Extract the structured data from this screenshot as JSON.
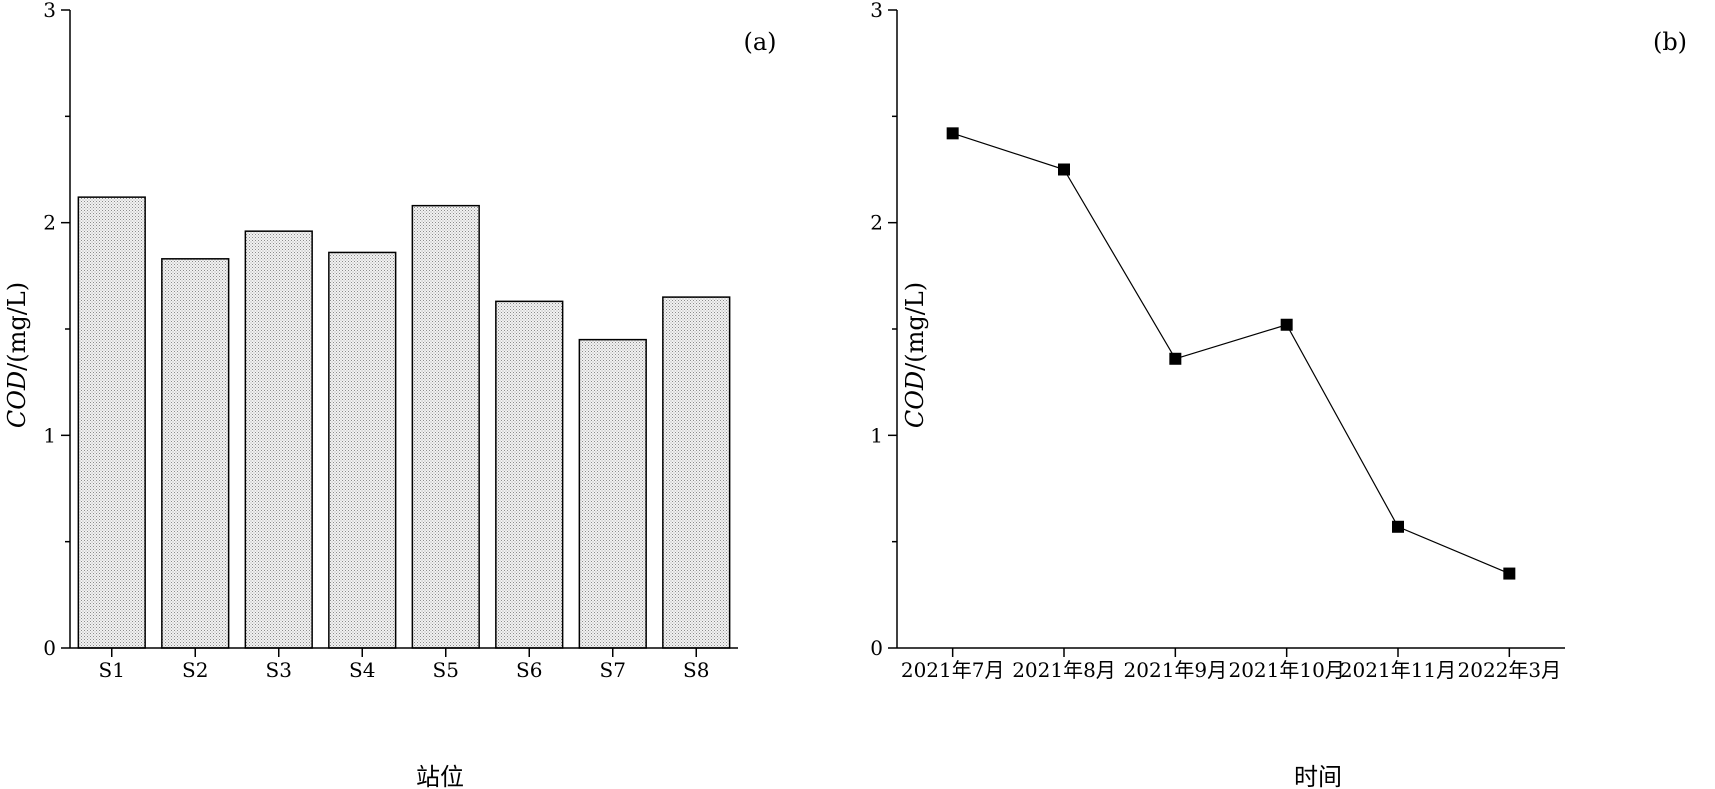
{
  "chart_data": [
    {
      "type": "bar",
      "panel_label": "(a)",
      "categories": [
        "S1",
        "S2",
        "S3",
        "S4",
        "S5",
        "S6",
        "S7",
        "S8"
      ],
      "values": [
        2.12,
        1.83,
        1.96,
        1.86,
        2.08,
        1.63,
        1.45,
        1.65
      ],
      "xlabel": "站位",
      "ylabel_italic": "COD",
      "ylabel_unit": "/(mg/L)",
      "ylim": [
        0,
        3
      ],
      "yticks_major": [
        "0",
        "1",
        "2",
        "3"
      ],
      "grid": false
    },
    {
      "type": "line",
      "panel_label": "(b)",
      "categories": [
        "2021年7月",
        "2021年8月",
        "2021年9月",
        "2021年10月",
        "2021年11月",
        "2022年3月"
      ],
      "values": [
        2.42,
        2.25,
        1.36,
        1.52,
        0.57,
        0.35
      ],
      "xlabel": "时间",
      "ylabel_italic": "COD",
      "ylabel_unit": "/(mg/L)",
      "ylim": [
        0,
        3
      ],
      "yticks_major": [
        "0",
        "1",
        "2",
        "3"
      ],
      "marker": "square",
      "grid": false
    }
  ]
}
